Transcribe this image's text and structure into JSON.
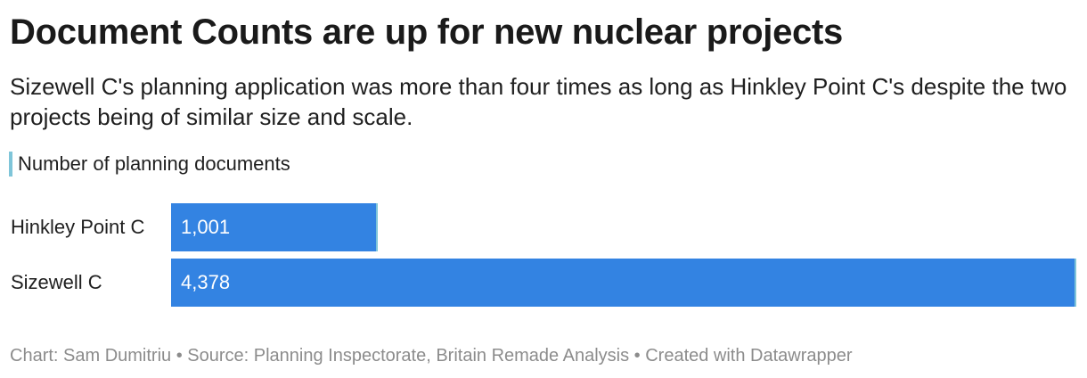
{
  "title": "Document Counts are up for new nuclear projects",
  "subtitle": "Sizewell C's planning application was more than four times as long as Hinkley Point C's despite the two projects being of similar size and scale.",
  "footer": "Chart: Sam Dumitriu • Source: Planning Inspectorate, Britain Remade Analysis • Created with Datawrapper",
  "colors": {
    "bar": "#3383e2",
    "bar_edge": "#7fc5d9",
    "legend_swatch": "#7fc5d9"
  },
  "chart_data": {
    "type": "bar",
    "orientation": "horizontal",
    "title": "Document Counts are up for new nuclear projects",
    "subtitle": "Sizewell C's planning application was more than four times as long as Hinkley Point C's despite the two projects being of similar size and scale.",
    "legend": [
      "Number of planning documents"
    ],
    "legend_placement": "top-left",
    "categories": [
      "Hinkley Point C",
      "Sizewell C"
    ],
    "series": [
      {
        "name": "Number of planning documents",
        "values": [
          1001,
          4378
        ],
        "labels": [
          "1,001",
          "4,378"
        ]
      }
    ],
    "xlim": [
      0,
      4378
    ],
    "grid": false
  }
}
